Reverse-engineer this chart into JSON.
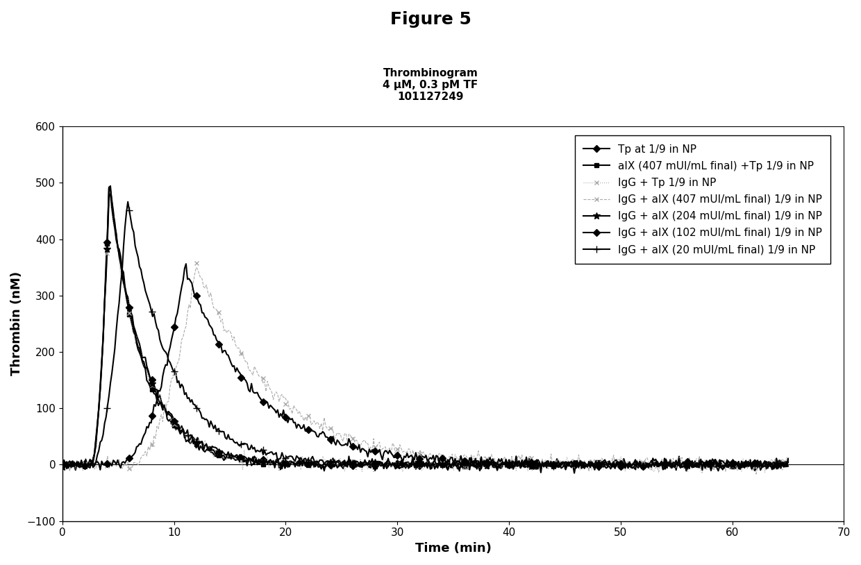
{
  "figure_title": "Figure 5",
  "chart_title": "Thrombinogram\n4 μM, 0.3 pM TF\n101127249",
  "xlabel": "Time (min)",
  "ylabel": "Thrombin (nM)",
  "xlim": [
    0,
    70
  ],
  "ylim": [
    -100,
    600
  ],
  "xticks": [
    0,
    10,
    20,
    30,
    40,
    50,
    60,
    70
  ],
  "yticks": [
    -100,
    0,
    100,
    200,
    300,
    400,
    500,
    600
  ],
  "series": [
    {
      "label": "Tp at 1/9 in NP",
      "color": "#000000",
      "marker": "D",
      "markersize": 5,
      "linewidth": 1.5,
      "linestyle": "-",
      "lag": 2.5,
      "peak_time": 4.2,
      "peak_val": 502,
      "decay_half": 2.5
    },
    {
      "label": "aIX (407 mUI/mL final) +Tp 1/9 in NP",
      "color": "#000000",
      "marker": "s",
      "markersize": 5,
      "linewidth": 1.5,
      "linestyle": "-",
      "lag": 2.5,
      "peak_time": 4.2,
      "peak_val": 507,
      "decay_half": 2.3
    },
    {
      "label": "IgG + Tp 1/9 in NP",
      "color": "#aaaaaa",
      "marker": "x",
      "markersize": 5,
      "linewidth": 0.8,
      "linestyle": ":",
      "lag": 2.5,
      "peak_time": 4.2,
      "peak_val": 480,
      "decay_half": 2.5
    },
    {
      "label": "IgG + aIX (407 mUI/mL final) 1/9 in NP",
      "color": "#aaaaaa",
      "marker": "x",
      "markersize": 5,
      "linewidth": 0.8,
      "linestyle": "--",
      "lag": 6.0,
      "peak_time": 12.0,
      "peak_val": 355,
      "decay_half": 5.5
    },
    {
      "label": "IgG + aIX (204 mUI/mL final) 1/9 in NP",
      "color": "#000000",
      "marker": "*",
      "markersize": 7,
      "linewidth": 1.5,
      "linestyle": "-",
      "lag": 2.5,
      "peak_time": 4.2,
      "peak_val": 491,
      "decay_half": 2.5
    },
    {
      "label": "IgG + aIX (102 mUI/mL final) 1/9 in NP",
      "color": "#000000",
      "marker": "D",
      "markersize": 5,
      "linewidth": 1.5,
      "linestyle": "-",
      "lag": 5.0,
      "peak_time": 11.0,
      "peak_val": 350,
      "decay_half": 5.0
    },
    {
      "label": "IgG + aIX (20 mUI/mL final) 1/9 in NP",
      "color": "#000000",
      "marker": "+",
      "markersize": 7,
      "linewidth": 1.5,
      "linestyle": "-",
      "lag": 2.5,
      "peak_time": 5.8,
      "peak_val": 470,
      "decay_half": 3.2
    }
  ]
}
